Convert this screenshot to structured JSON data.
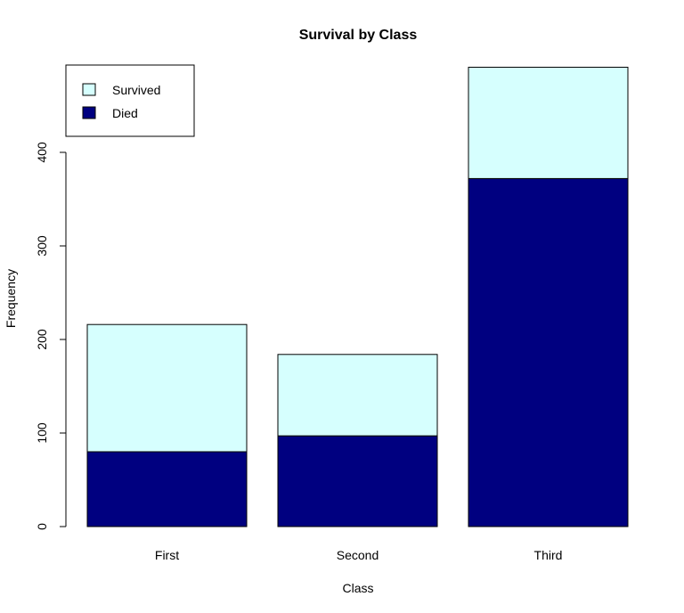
{
  "chart_data": {
    "type": "bar",
    "stacked": true,
    "title": "Survival by Class",
    "xlabel": "Class",
    "ylabel": "Frequency",
    "categories": [
      "First",
      "Second",
      "Third"
    ],
    "series": [
      {
        "name": "Died",
        "values": [
          80,
          97,
          372
        ],
        "color": "#000080"
      },
      {
        "name": "Survived",
        "values": [
          136,
          87,
          119
        ],
        "color": "#d6fffe"
      }
    ],
    "yticks": [
      0,
      100,
      200,
      300,
      400
    ],
    "ylim": [
      0,
      491
    ],
    "legend": {
      "position": "top-left",
      "entries": [
        "Survived",
        "Died"
      ]
    },
    "grid": false
  }
}
